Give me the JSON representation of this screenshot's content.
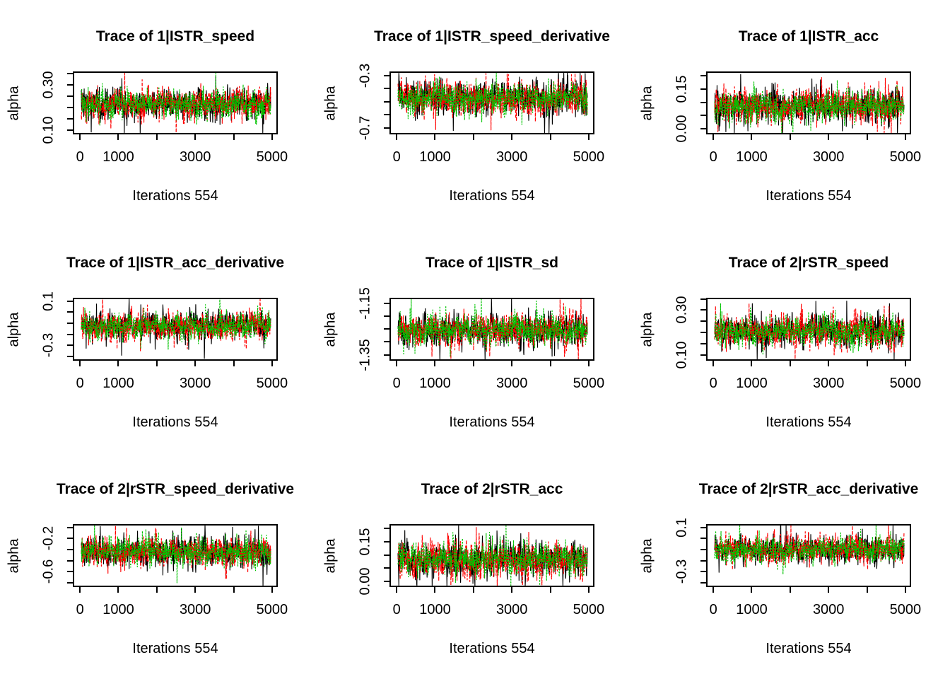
{
  "figure": {
    "background": "#ffffff",
    "grid": {
      "rows": 3,
      "cols": 3
    },
    "series_colors": {
      "chain-1": "#000000",
      "chain-2": "#FF0000",
      "chain-3": "#00C300"
    }
  },
  "chart_data": [
    {
      "type": "line",
      "title": "Trace of 1|ISTR_speed",
      "xlabel": "Iterations 554",
      "ylabel": "alpha",
      "x_range": [
        0,
        5000
      ],
      "x_ticks": [
        0,
        1000,
        2000,
        3000,
        4000,
        5000
      ],
      "x_tick_labels": [
        "0",
        "1000",
        "",
        "3000",
        "",
        "5000"
      ],
      "y_ticks": [
        0.1,
        0.15,
        0.2,
        0.25,
        0.3,
        0.35
      ],
      "y_tick_labels": [
        "0.10",
        "",
        "",
        "",
        "0.30",
        ""
      ],
      "ylim": [
        0.08,
        0.36
      ],
      "legend": "none",
      "series": [
        {
          "name": "chain-1",
          "color": "#000000",
          "line_style": "solid",
          "mean": 0.215,
          "sd": 0.036
        },
        {
          "name": "chain-2",
          "color": "#FF0000",
          "line_style": "dashed",
          "mean": 0.215,
          "sd": 0.036
        },
        {
          "name": "chain-3",
          "color": "#00C300",
          "line_style": "dotted",
          "mean": 0.215,
          "sd": 0.033
        }
      ]
    },
    {
      "type": "line",
      "title": "Trace of 1|ISTR_speed_derivative",
      "xlabel": "Iterations 554",
      "ylabel": "alpha",
      "x_range": [
        0,
        5000
      ],
      "x_ticks": [
        0,
        1000,
        2000,
        3000,
        4000,
        5000
      ],
      "x_tick_labels": [
        "0",
        "1000",
        "",
        "3000",
        "",
        "5000"
      ],
      "y_ticks": [
        -0.7,
        -0.6,
        -0.5,
        -0.4,
        -0.3
      ],
      "y_tick_labels": [
        "-0.7",
        "",
        "",
        "",
        "-0.3"
      ],
      "ylim": [
        -0.75,
        -0.27
      ],
      "legend": "none",
      "series": [
        {
          "name": "chain-1",
          "color": "#000000",
          "line_style": "solid",
          "mean": -0.47,
          "sd": 0.068
        },
        {
          "name": "chain-2",
          "color": "#FF0000",
          "line_style": "dashed",
          "mean": -0.47,
          "sd": 0.068
        },
        {
          "name": "chain-3",
          "color": "#00C300",
          "line_style": "dotted",
          "mean": -0.47,
          "sd": 0.063
        }
      ]
    },
    {
      "type": "line",
      "title": "Trace of 1|ISTR_acc",
      "xlabel": "Iterations 554",
      "ylabel": "alpha",
      "x_range": [
        0,
        5000
      ],
      "x_ticks": [
        0,
        1000,
        2000,
        3000,
        4000,
        5000
      ],
      "x_tick_labels": [
        "0",
        "1000",
        "",
        "3000",
        "",
        "5000"
      ],
      "y_ticks": [
        0.0,
        0.05,
        0.1,
        0.15,
        0.2
      ],
      "y_tick_labels": [
        "0.00",
        "",
        "",
        "0.15",
        ""
      ],
      "ylim": [
        -0.02,
        0.215
      ],
      "legend": "none",
      "series": [
        {
          "name": "chain-1",
          "color": "#000000",
          "line_style": "solid",
          "mean": 0.085,
          "sd": 0.033
        },
        {
          "name": "chain-2",
          "color": "#FF0000",
          "line_style": "dashed",
          "mean": 0.085,
          "sd": 0.033
        },
        {
          "name": "chain-3",
          "color": "#00C300",
          "line_style": "dotted",
          "mean": 0.085,
          "sd": 0.03
        }
      ]
    },
    {
      "type": "line",
      "title": "Trace of 1|ISTR_acc_derivative",
      "xlabel": "Iterations 554",
      "ylabel": "alpha",
      "x_range": [
        0,
        5000
      ],
      "x_ticks": [
        0,
        1000,
        2000,
        3000,
        4000,
        5000
      ],
      "x_tick_labels": [
        "0",
        "1000",
        "",
        "3000",
        "",
        "5000"
      ],
      "y_ticks": [
        -0.4,
        -0.3,
        -0.2,
        -0.1,
        0.0,
        0.1
      ],
      "y_tick_labels": [
        "",
        "-0.3",
        "",
        "",
        "",
        "0.1"
      ],
      "ylim": [
        -0.44,
        0.13
      ],
      "legend": "none",
      "series": [
        {
          "name": "chain-1",
          "color": "#000000",
          "line_style": "solid",
          "mean": -0.125,
          "sd": 0.07
        },
        {
          "name": "chain-2",
          "color": "#FF0000",
          "line_style": "dashed",
          "mean": -0.125,
          "sd": 0.07
        },
        {
          "name": "chain-3",
          "color": "#00C300",
          "line_style": "dotted",
          "mean": -0.125,
          "sd": 0.064
        }
      ]
    },
    {
      "type": "line",
      "title": "Trace of 1|ISTR_sd",
      "xlabel": "Iterations 554",
      "ylabel": "alpha",
      "x_range": [
        0,
        5000
      ],
      "x_ticks": [
        0,
        1000,
        2000,
        3000,
        4000,
        5000
      ],
      "x_tick_labels": [
        "0",
        "1000",
        "",
        "3000",
        "",
        "5000"
      ],
      "y_ticks": [
        -1.35,
        -1.3,
        -1.25,
        -1.2,
        -1.15
      ],
      "y_tick_labels": [
        "-1.35",
        "",
        "",
        "",
        "-1.15"
      ],
      "ylim": [
        -1.373,
        -1.128
      ],
      "legend": "none",
      "series": [
        {
          "name": "chain-1",
          "color": "#000000",
          "line_style": "solid",
          "mean": -1.252,
          "sd": 0.034
        },
        {
          "name": "chain-2",
          "color": "#FF0000",
          "line_style": "dashed",
          "mean": -1.252,
          "sd": 0.034
        },
        {
          "name": "chain-3",
          "color": "#00C300",
          "line_style": "dotted",
          "mean": -1.252,
          "sd": 0.031
        }
      ]
    },
    {
      "type": "line",
      "title": "Trace of 2|rSTR_speed",
      "xlabel": "Iterations 554",
      "ylabel": "alpha",
      "x_range": [
        0,
        5000
      ],
      "x_ticks": [
        0,
        1000,
        2000,
        3000,
        4000,
        5000
      ],
      "x_tick_labels": [
        "0",
        "1000",
        "",
        "3000",
        "",
        "5000"
      ],
      "y_ticks": [
        0.1,
        0.15,
        0.2,
        0.25,
        0.3,
        0.35
      ],
      "y_tick_labels": [
        "0.10",
        "",
        "",
        "",
        "0.30",
        ""
      ],
      "ylim": [
        0.075,
        0.355
      ],
      "legend": "none",
      "series": [
        {
          "name": "chain-1",
          "color": "#000000",
          "line_style": "solid",
          "mean": 0.205,
          "sd": 0.036
        },
        {
          "name": "chain-2",
          "color": "#FF0000",
          "line_style": "dashed",
          "mean": 0.205,
          "sd": 0.036
        },
        {
          "name": "chain-3",
          "color": "#00C300",
          "line_style": "dotted",
          "mean": 0.205,
          "sd": 0.033
        }
      ]
    },
    {
      "type": "line",
      "title": "Trace of 2|rSTR_speed_derivative",
      "xlabel": "Iterations 554",
      "ylabel": "alpha",
      "x_range": [
        0,
        5000
      ],
      "x_ticks": [
        0,
        1000,
        2000,
        3000,
        4000,
        5000
      ],
      "x_tick_labels": [
        "0",
        "1000",
        "",
        "3000",
        "",
        "5000"
      ],
      "y_ticks": [
        -0.7,
        -0.6,
        -0.5,
        -0.4,
        -0.3,
        -0.2
      ],
      "y_tick_labels": [
        "",
        "-0.6",
        "",
        "",
        "-0.2",
        ""
      ],
      "ylim": [
        -0.74,
        -0.17
      ],
      "legend": "none",
      "series": [
        {
          "name": "chain-1",
          "color": "#000000",
          "line_style": "solid",
          "mean": -0.42,
          "sd": 0.072
        },
        {
          "name": "chain-2",
          "color": "#FF0000",
          "line_style": "dashed",
          "mean": -0.42,
          "sd": 0.072
        },
        {
          "name": "chain-3",
          "color": "#00C300",
          "line_style": "dotted",
          "mean": -0.42,
          "sd": 0.066
        }
      ]
    },
    {
      "type": "line",
      "title": "Trace of 2|rSTR_acc",
      "xlabel": "Iterations 554",
      "ylabel": "alpha",
      "x_range": [
        0,
        5000
      ],
      "x_ticks": [
        0,
        1000,
        2000,
        3000,
        4000,
        5000
      ],
      "x_tick_labels": [
        "0",
        "1000",
        "",
        "3000",
        "",
        "5000"
      ],
      "y_ticks": [
        0.0,
        0.05,
        0.1,
        0.15,
        0.2
      ],
      "y_tick_labels": [
        "0.00",
        "",
        "",
        "0.15",
        ""
      ],
      "ylim": [
        -0.02,
        0.215
      ],
      "legend": "none",
      "series": [
        {
          "name": "chain-1",
          "color": "#000000",
          "line_style": "solid",
          "mean": 0.082,
          "sd": 0.036
        },
        {
          "name": "chain-2",
          "color": "#FF0000",
          "line_style": "dashed",
          "mean": 0.082,
          "sd": 0.036
        },
        {
          "name": "chain-3",
          "color": "#00C300",
          "line_style": "dotted",
          "mean": 0.082,
          "sd": 0.032
        }
      ]
    },
    {
      "type": "line",
      "title": "Trace of 2|rSTR_acc_derivative",
      "xlabel": "Iterations 554",
      "ylabel": "alpha",
      "x_range": [
        0,
        5000
      ],
      "x_ticks": [
        0,
        1000,
        2000,
        3000,
        4000,
        5000
      ],
      "x_tick_labels": [
        "0",
        "1000",
        "",
        "3000",
        "",
        "5000"
      ],
      "y_ticks": [
        -0.4,
        -0.3,
        -0.2,
        -0.1,
        0.0,
        0.1
      ],
      "y_tick_labels": [
        "",
        "-0.3",
        "",
        "",
        "",
        "0.1"
      ],
      "ylim": [
        -0.44,
        0.13
      ],
      "legend": "none",
      "series": [
        {
          "name": "chain-1",
          "color": "#000000",
          "line_style": "solid",
          "mean": -0.1,
          "sd": 0.067
        },
        {
          "name": "chain-2",
          "color": "#FF0000",
          "line_style": "dashed",
          "mean": -0.1,
          "sd": 0.067
        },
        {
          "name": "chain-3",
          "color": "#00C300",
          "line_style": "dotted",
          "mean": -0.1,
          "sd": 0.061
        }
      ]
    }
  ]
}
